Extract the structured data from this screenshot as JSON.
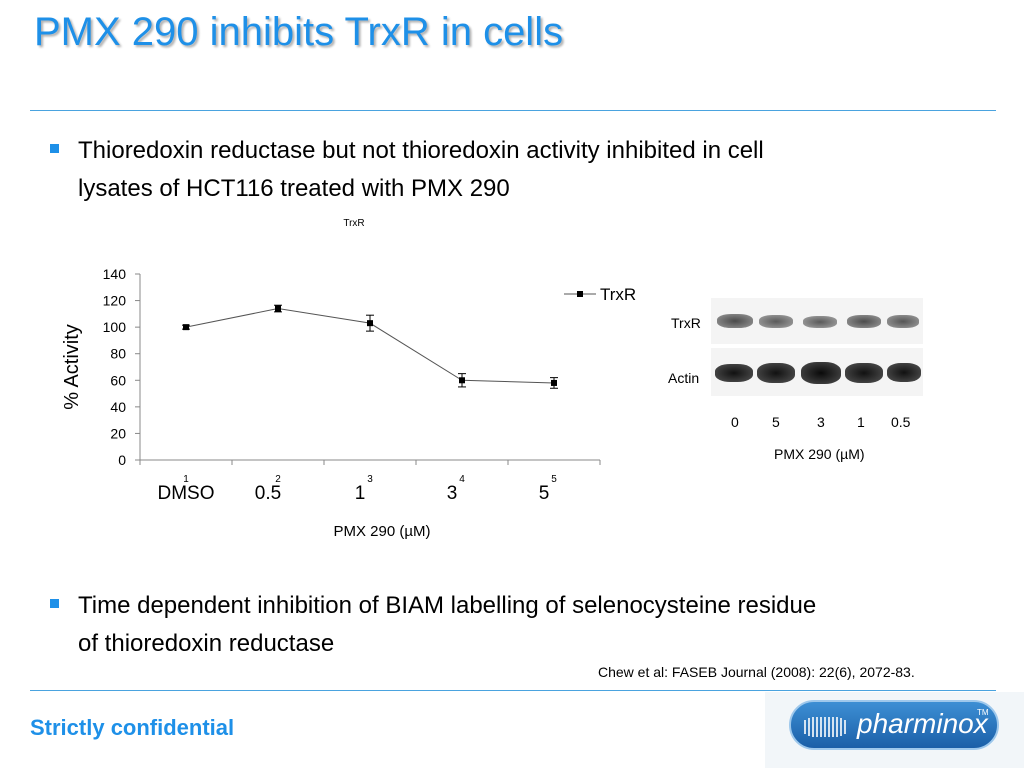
{
  "slide": {
    "title": "PMX 290 inhibits TrxR in cells",
    "bullets": [
      {
        "line1": "Thioredoxin reductase but not thioredoxin activity inhibited in cell",
        "line2": "lysates of  HCT116 treated with PMX 290"
      },
      {
        "line1": "Time dependent inhibition of BIAM labelling of selenocysteine residue",
        "line2": "of thioredoxin reductase"
      }
    ],
    "citation": "Chew et al:  FASEB Journal (2008): 22(6), 2072-83.",
    "footer": "Strictly confidential",
    "logo_text": "pharminox",
    "logo_tm": "TM",
    "accent_color": "#1e90e8"
  },
  "chart_data": {
    "type": "line",
    "title": "TrxR",
    "ylabel": "% Activity",
    "xlabel": "PMX 290 (µM)",
    "ylim": [
      0,
      140
    ],
    "yticks": [
      "0",
      "20",
      "40",
      "60",
      "80",
      "100",
      "120",
      "140"
    ],
    "x_index_labels": [
      "1",
      "2",
      "3",
      "4",
      "5"
    ],
    "categories": [
      "DMSO",
      "0.5",
      "1",
      "3",
      "5"
    ],
    "legend_position": "top-right",
    "series": [
      {
        "name": "TrxR",
        "values": [
          100,
          114,
          103,
          60,
          58
        ],
        "errors": [
          1.5,
          2.5,
          6,
          5,
          4
        ],
        "color": "#000000"
      }
    ]
  },
  "blot": {
    "rows": [
      "TrxR",
      "Actin"
    ],
    "lanes": [
      "0",
      "5",
      "3",
      "1",
      "0.5"
    ],
    "xlabel": "PMX 290 (µM)"
  }
}
